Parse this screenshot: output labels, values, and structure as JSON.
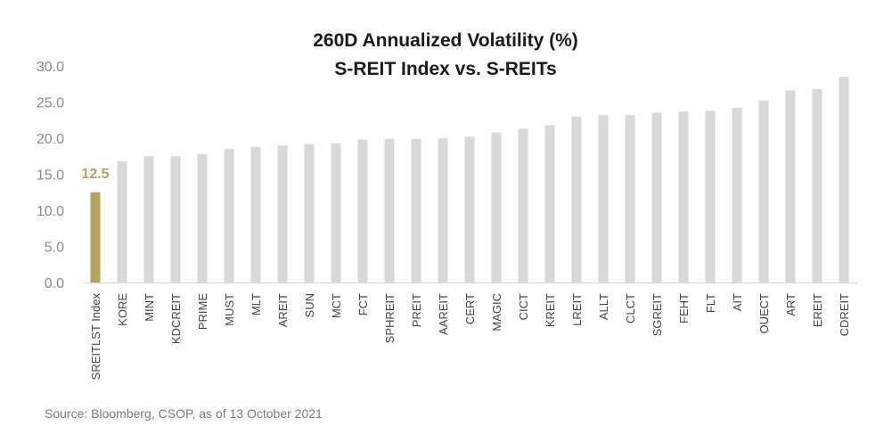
{
  "chart_data": {
    "type": "bar",
    "title": [
      "260D Annualized Volatility (%)",
      "S-REIT Index vs. S-REITs"
    ],
    "xlabel": "",
    "ylabel": "",
    "ylim": [
      0,
      30
    ],
    "yticks": [
      "0.0",
      "5.0",
      "10.0",
      "15.0",
      "20.0",
      "25.0",
      "30.0"
    ],
    "grid": false,
    "legend": "none",
    "categories": [
      "SREITLST Index",
      "KORE",
      "MINT",
      "KDCREIT",
      "PRIME",
      "MUST",
      "MLT",
      "AREIT",
      "SUN",
      "MCT",
      "FCT",
      "SPHREIT",
      "PREIT",
      "AAREIT",
      "CERT",
      "MAGIC",
      "CICT",
      "KREIT",
      "LREIT",
      "ALLT",
      "CLCT",
      "SGREIT",
      "FEHT",
      "FLT",
      "AIT",
      "OUECT",
      "ART",
      "EREIT",
      "CDREIT"
    ],
    "values": [
      12.5,
      16.8,
      17.5,
      17.5,
      17.8,
      18.5,
      18.8,
      19.0,
      19.2,
      19.3,
      19.8,
      19.9,
      19.9,
      20.0,
      20.2,
      20.8,
      21.3,
      21.8,
      23.0,
      23.2,
      23.2,
      23.5,
      23.7,
      23.8,
      24.2,
      25.2,
      26.6,
      26.8,
      28.5
    ],
    "data_labels": [
      {
        "category": "SREITLST Index",
        "text": "12.5"
      }
    ],
    "colors": {
      "highlight": "#b5a162",
      "default": "#d9d9d9",
      "highlight_label": "#b5a162"
    },
    "highlight_index": 0
  },
  "footer": {
    "source": "Source: Bloomberg, CSOP, as of 13 October 2021"
  }
}
